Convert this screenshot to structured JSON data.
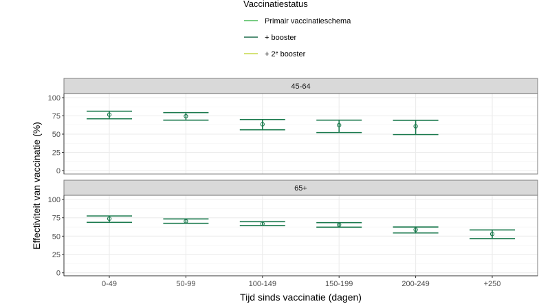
{
  "chart_data": {
    "type": "scatter",
    "subtype": "errorbar-faceted",
    "xlabel": "Tijd sinds vaccinatie (dagen)",
    "ylabel": "Effectiviteit van vaccinatie (%)",
    "categories": [
      "0-49",
      "50-99",
      "100-149",
      "150-199",
      "200-249",
      "+250"
    ],
    "ylim": [
      0,
      100
    ],
    "yticks": [
      0,
      25,
      50,
      75,
      100
    ],
    "grid": true,
    "legend": {
      "title": "Vaccinatiestatus",
      "placement": "top-center",
      "entries": [
        {
          "label": "Primair vaccinatieschema",
          "color": "#4cbb5a"
        },
        {
          "label": "+ booster",
          "color": "#1b6b4a"
        },
        {
          "label": "+ 2",
          "sup": "e",
          "suffix": " booster",
          "color": "#c5d94a"
        }
      ]
    },
    "facets": [
      {
        "label": "45-64",
        "series": [
          {
            "name": "+ booster",
            "color": "#1b7a4e",
            "points": [
              {
                "category": "0-49",
                "estimate": 76.7,
                "lower": 71.0,
                "upper": 81.4
              },
              {
                "category": "50-99",
                "estimate": 74.5,
                "lower": 69.2,
                "upper": 79.5
              },
              {
                "category": "100-149",
                "estimate": 63.5,
                "lower": 56.0,
                "upper": 70.0
              },
              {
                "category": "150-199",
                "estimate": 62.3,
                "lower": 52.2,
                "upper": 69.2
              },
              {
                "category": "200-249",
                "estimate": 60.7,
                "lower": 49.4,
                "upper": 68.9
              }
            ]
          }
        ]
      },
      {
        "label": "65+",
        "series": [
          {
            "name": "+ booster",
            "color": "#1b7a4e",
            "points": [
              {
                "category": "0-49",
                "estimate": 73.8,
                "lower": 68.8,
                "upper": 77.5
              },
              {
                "category": "50-99",
                "estimate": 70.3,
                "lower": 67.5,
                "upper": 73.5
              },
              {
                "category": "100-149",
                "estimate": 66.9,
                "lower": 64.4,
                "upper": 69.7
              },
              {
                "category": "150-199",
                "estimate": 65.3,
                "lower": 62.2,
                "upper": 68.4
              },
              {
                "category": "200-249",
                "estimate": 58.8,
                "lower": 54.4,
                "upper": 62.5
              },
              {
                "category": "+250",
                "estimate": 52.9,
                "lower": 46.6,
                "upper": 58.5
              }
            ]
          }
        ]
      }
    ]
  }
}
